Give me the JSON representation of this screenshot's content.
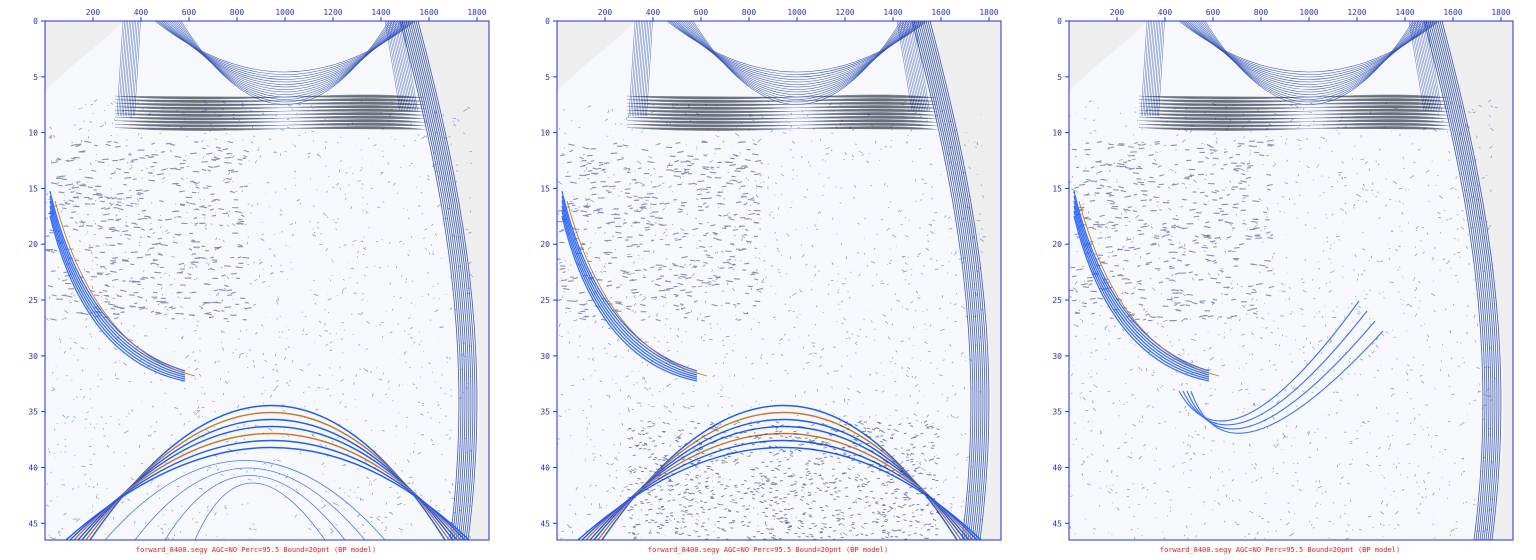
{
  "chart_data": [
    {
      "type": "heatmap",
      "caption": "forward_8400.segy AGC=NO Perc=95.5 Bound=20pnt (BP model)",
      "x_ticks": [
        200,
        400,
        600,
        800,
        1000,
        1200,
        1400,
        1600,
        1800
      ],
      "y_ticks": [
        0,
        5,
        10,
        15,
        20,
        25,
        30,
        35,
        40,
        45
      ],
      "xlim": [
        0,
        1850
      ],
      "ylim": [
        0,
        46.5
      ],
      "grid": false,
      "colors": {
        "axis": "#2233cc",
        "wave": "#1b3fae",
        "accent": "#1e5bff",
        "background": "#eeeeee",
        "caption": "#e02020"
      }
    },
    {
      "type": "heatmap",
      "caption": "forward_8400.segy AGC=NO Perc=95.5 Bound=20pnt (BP model)",
      "x_ticks": [
        200,
        400,
        600,
        800,
        1000,
        1200,
        1400,
        1600,
        1800
      ],
      "y_ticks": [
        0,
        5,
        10,
        15,
        20,
        25,
        30,
        35,
        40,
        45
      ],
      "xlim": [
        0,
        1850
      ],
      "ylim": [
        0,
        46.5
      ],
      "grid": false,
      "colors": {
        "axis": "#2233cc",
        "wave": "#1b3fae",
        "accent": "#1e5bff",
        "background": "#eeeeee",
        "caption": "#e02020"
      }
    },
    {
      "type": "heatmap",
      "caption": "forward_8400.segy AGC=NO Perc=95.5 Bound=20pnt (BP model)",
      "x_ticks": [
        200,
        400,
        600,
        800,
        1000,
        1200,
        1400,
        1600,
        1800
      ],
      "y_ticks": [
        0,
        5,
        10,
        15,
        20,
        25,
        30,
        35,
        40,
        45
      ],
      "xlim": [
        0,
        1850
      ],
      "ylim": [
        0,
        46.5
      ],
      "grid": false,
      "colors": {
        "axis": "#2233cc",
        "wave": "#1b3fae",
        "accent": "#1e5bff",
        "background": "#eeeeee",
        "caption": "#e02020"
      }
    }
  ]
}
